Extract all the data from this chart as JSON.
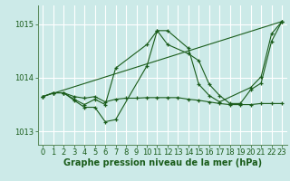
{
  "xlabel": "Graphe pression niveau de la mer (hPa)",
  "ylabel": "",
  "bg_color": "#cceae8",
  "grid_color": "#ffffff",
  "line_color": "#1a5c1a",
  "marker": "+",
  "xlim": [
    -0.5,
    23.5
  ],
  "ylim": [
    1012.75,
    1015.35
  ],
  "yticks": [
    1013,
    1014,
    1015
  ],
  "xticks": [
    0,
    1,
    2,
    3,
    4,
    5,
    6,
    7,
    8,
    9,
    10,
    11,
    12,
    13,
    14,
    15,
    16,
    17,
    18,
    19,
    20,
    21,
    22,
    23
  ],
  "series": [
    {
      "x": [
        0,
        1,
        2,
        3,
        4,
        5,
        6,
        7,
        8,
        9,
        10,
        11,
        12,
        13,
        14,
        15,
        16,
        17,
        18,
        19,
        20,
        21,
        22,
        23
      ],
      "y": [
        1013.65,
        1013.72,
        1013.72,
        1013.65,
        1013.62,
        1013.65,
        1013.55,
        1013.6,
        1013.62,
        1013.62,
        1013.63,
        1013.63,
        1013.63,
        1013.63,
        1013.6,
        1013.58,
        1013.55,
        1013.52,
        1013.5,
        1013.5,
        1013.5,
        1013.52,
        1013.52,
        1013.52
      ]
    },
    {
      "x": [
        0,
        1,
        2,
        3,
        4,
        5,
        6,
        7,
        10,
        11,
        12,
        14,
        15,
        16,
        17,
        20,
        21,
        22,
        23
      ],
      "y": [
        1013.65,
        1013.72,
        1013.72,
        1013.58,
        1013.45,
        1013.45,
        1013.18,
        1013.22,
        1014.22,
        1014.88,
        1014.88,
        1014.55,
        1013.88,
        1013.67,
        1013.55,
        1013.82,
        1014.02,
        1014.82,
        1015.05
      ]
    },
    {
      "x": [
        1,
        2,
        3,
        4,
        5,
        6,
        7,
        10,
        11,
        12,
        14,
        15,
        16,
        17,
        18,
        19,
        20,
        21,
        22,
        23
      ],
      "y": [
        1013.72,
        1013.72,
        1013.6,
        1013.5,
        1013.6,
        1013.5,
        1014.18,
        1014.62,
        1014.88,
        1014.62,
        1014.45,
        1014.32,
        1013.88,
        1013.67,
        1013.52,
        1013.52,
        1013.78,
        1013.9,
        1014.68,
        1015.05
      ]
    },
    {
      "x": [
        0,
        23
      ],
      "y": [
        1013.65,
        1015.05
      ]
    }
  ],
  "axis_label_fontsize": 7,
  "tick_fontsize": 6
}
